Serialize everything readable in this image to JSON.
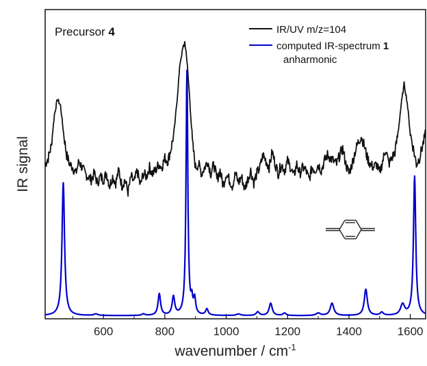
{
  "chart_data": {
    "type": "line",
    "title": "",
    "panel_label": {
      "text": "Precursor ",
      "bold_part": "4"
    },
    "xlabel": {
      "text": "wavenumber / cm",
      "superscript": "-1"
    },
    "ylabel": "IR signal",
    "xlim": [
      410,
      1650
    ],
    "ylim": [
      0,
      1
    ],
    "x_ticks": [
      600,
      800,
      1000,
      1200,
      1400,
      1600
    ],
    "x_tick_labels": [
      "600",
      "800",
      "1000",
      "1200",
      "1400",
      "1600"
    ],
    "y_ticks_shown": false,
    "grid": false,
    "legend_position": "top-right",
    "series": [
      {
        "name": "IR/UV m/z=104",
        "color": "#111111",
        "kind": "experimental",
        "x": [
          410,
          420,
          430,
          440,
          450,
          460,
          470,
          480,
          490,
          500,
          510,
          520,
          530,
          540,
          550,
          560,
          570,
          580,
          590,
          600,
          610,
          620,
          630,
          640,
          650,
          660,
          670,
          680,
          690,
          700,
          710,
          720,
          730,
          740,
          750,
          760,
          770,
          780,
          790,
          800,
          810,
          820,
          830,
          840,
          850,
          860,
          865,
          870,
          880,
          890,
          900,
          910,
          920,
          930,
          940,
          950,
          960,
          970,
          980,
          990,
          1000,
          1010,
          1020,
          1030,
          1040,
          1050,
          1060,
          1070,
          1080,
          1090,
          1100,
          1110,
          1120,
          1130,
          1140,
          1150,
          1160,
          1170,
          1180,
          1190,
          1200,
          1210,
          1220,
          1230,
          1240,
          1250,
          1260,
          1270,
          1280,
          1290,
          1300,
          1310,
          1320,
          1330,
          1340,
          1350,
          1360,
          1370,
          1380,
          1390,
          1400,
          1410,
          1420,
          1430,
          1440,
          1450,
          1460,
          1470,
          1480,
          1490,
          1500,
          1510,
          1520,
          1530,
          1540,
          1550,
          1560,
          1570,
          1580,
          1590,
          1600,
          1610,
          1620,
          1630,
          1640,
          1650
        ],
        "y": [
          0.5,
          0.52,
          0.56,
          0.66,
          0.71,
          0.69,
          0.6,
          0.53,
          0.5,
          0.49,
          0.47,
          0.51,
          0.49,
          0.47,
          0.46,
          0.45,
          0.47,
          0.44,
          0.46,
          0.45,
          0.47,
          0.43,
          0.46,
          0.44,
          0.48,
          0.43,
          0.45,
          0.41,
          0.46,
          0.44,
          0.48,
          0.43,
          0.47,
          0.46,
          0.49,
          0.47,
          0.48,
          0.5,
          0.49,
          0.52,
          0.51,
          0.55,
          0.6,
          0.71,
          0.83,
          0.88,
          0.89,
          0.86,
          0.73,
          0.57,
          0.49,
          0.5,
          0.47,
          0.49,
          0.51,
          0.47,
          0.5,
          0.45,
          0.48,
          0.43,
          0.47,
          0.45,
          0.43,
          0.47,
          0.44,
          0.46,
          0.42,
          0.45,
          0.48,
          0.44,
          0.47,
          0.49,
          0.53,
          0.51,
          0.49,
          0.54,
          0.5,
          0.47,
          0.5,
          0.48,
          0.51,
          0.49,
          0.46,
          0.5,
          0.47,
          0.49,
          0.48,
          0.45,
          0.49,
          0.48,
          0.5,
          0.48,
          0.51,
          0.53,
          0.52,
          0.51,
          0.5,
          0.53,
          0.55,
          0.5,
          0.47,
          0.5,
          0.54,
          0.57,
          0.59,
          0.56,
          0.52,
          0.5,
          0.49,
          0.5,
          0.47,
          0.51,
          0.55,
          0.5,
          0.52,
          0.54,
          0.6,
          0.69,
          0.76,
          0.7,
          0.6,
          0.55,
          0.5,
          0.52,
          0.56,
          0.6
        ]
      },
      {
        "name": "computed IR-spectrum 1",
        "name_main": "computed IR-spectrum ",
        "name_bold": "1",
        "subtitle": "anharmonic",
        "color": "#0000cc",
        "kind": "computed",
        "baseline": 0.01,
        "peaks": [
          {
            "x": 469,
            "height": 0.43,
            "width": 5
          },
          {
            "x": 575,
            "height": 0.005,
            "width": 8
          },
          {
            "x": 730,
            "height": 0.005,
            "width": 6
          },
          {
            "x": 782,
            "height": 0.07,
            "width": 5
          },
          {
            "x": 828,
            "height": 0.06,
            "width": 5
          },
          {
            "x": 872,
            "height": 0.79,
            "width": 3.5
          },
          {
            "x": 888,
            "height": 0.04,
            "width": 3
          },
          {
            "x": 897,
            "height": 0.05,
            "width": 4
          },
          {
            "x": 937,
            "height": 0.02,
            "width": 5
          },
          {
            "x": 1040,
            "height": 0.005,
            "width": 8
          },
          {
            "x": 1103,
            "height": 0.012,
            "width": 6
          },
          {
            "x": 1145,
            "height": 0.04,
            "width": 6
          },
          {
            "x": 1190,
            "height": 0.008,
            "width": 6
          },
          {
            "x": 1300,
            "height": 0.008,
            "width": 8
          },
          {
            "x": 1345,
            "height": 0.04,
            "width": 7
          },
          {
            "x": 1455,
            "height": 0.085,
            "width": 6
          },
          {
            "x": 1507,
            "height": 0.01,
            "width": 6
          },
          {
            "x": 1575,
            "height": 0.035,
            "width": 8
          },
          {
            "x": 1614,
            "height": 0.45,
            "width": 4.5
          }
        ]
      }
    ]
  },
  "structure_icon": "p-xylylene-structure-icon"
}
